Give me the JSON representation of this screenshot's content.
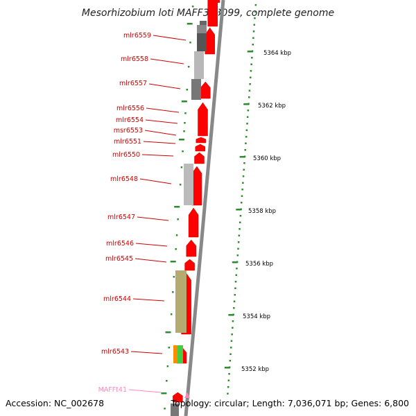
{
  "title": "Mesorhizobium loti MAFF303099, complete genome",
  "accession": "Accession: NC_002678",
  "topology": "Topology: circular; Length: 7,036,071 bp; Genes: 6,800",
  "colors": {
    "label": "#cc0000",
    "trna_label": "#ff88bb",
    "arrow_red": "#ff0000",
    "tick_green": "#2e8b2e",
    "backbone": "#888888"
  },
  "ruler_labels": [
    "5364 kbp",
    "5362 kbp",
    "5360 kbp",
    "5358 kbp",
    "5356 kbp",
    "5354 kbp",
    "5352 kbp"
  ],
  "gene_labels": [
    "mlr6559",
    "mlr6558",
    "mlr6557",
    "mlr6556",
    "mlr6554",
    "msr6553",
    "mlr6551",
    "mlr6550",
    "mlr6548",
    "mlr6547",
    "mlr6546",
    "mlr6545",
    "mlr6544",
    "mlr6543",
    "MAFFt41"
  ]
}
